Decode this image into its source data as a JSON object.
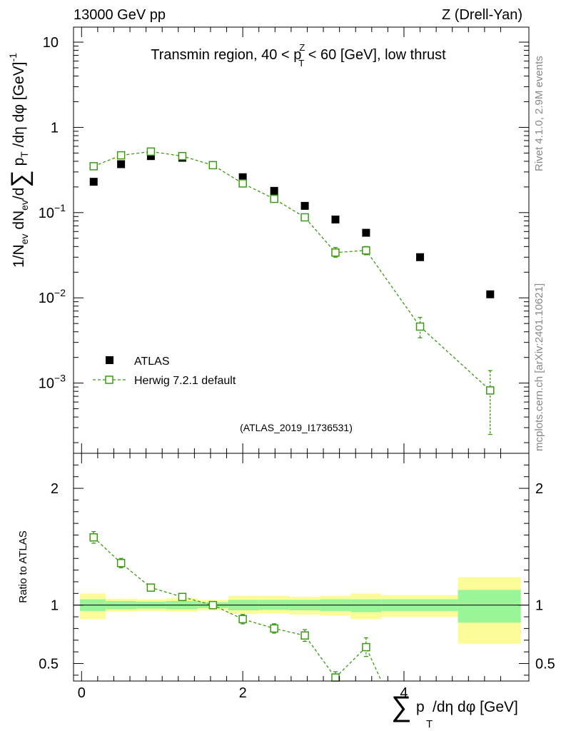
{
  "header": {
    "left": "13000 GeV pp",
    "right": "Z (Drell-Yan)"
  },
  "side_labels": {
    "rivet": "Rivet 4.1.0,  2.9M events",
    "mcplots": "mcplots.cern.ch [arXiv:2401.10621]"
  },
  "watermark": "(ATLAS_2019_I1736531)",
  "colors": {
    "data": "#000000",
    "mc": "#3a9a12",
    "band_inner": "#98f598",
    "band_outer": "#fbfb98"
  },
  "chart_data": [
    {
      "type": "scatter",
      "panel": "main",
      "title_parts": {
        "prefix": "Transmin region, 40 < p",
        "sup": "Z",
        "sub": "T",
        "suffix": " < 60 [GeV], low thrust"
      },
      "ylabel_parts": [
        "1/N",
        "ev",
        " dN",
        "ev",
        "/d",
        "∑",
        " p",
        "T",
        " /dη dφ  [GeV]",
        "-1"
      ],
      "yscale": "log",
      "ylim": [
        0.00015,
        15
      ],
      "xlim": [
        -0.1,
        5.55
      ],
      "y_ticks": [
        {
          "v": 0.001,
          "base": "10",
          "exp": "−3"
        },
        {
          "v": 0.01,
          "base": "10",
          "exp": "−2"
        },
        {
          "v": 0.1,
          "base": "10",
          "exp": "−1"
        },
        {
          "v": 1,
          "base": "1",
          "exp": ""
        },
        {
          "v": 10,
          "base": "10",
          "exp": ""
        }
      ],
      "legend": {
        "position": "lower-left",
        "entries": [
          {
            "label": "ATLAS",
            "style": "filled-square"
          },
          {
            "label": "Herwig 7.2.1 default",
            "style": "open-square-dashed"
          }
        ]
      },
      "series": [
        {
          "name": "ATLAS",
          "x": [
            0.15,
            0.49,
            0.86,
            1.25,
            1.63,
            2.0,
            2.39,
            2.77,
            3.15,
            3.53,
            4.2,
            5.07
          ],
          "values": [
            0.23,
            0.37,
            0.46,
            0.44,
            0.36,
            0.26,
            0.18,
            0.12,
            0.083,
            0.058,
            0.03,
            0.011
          ]
        },
        {
          "name": "Herwig 7.2.1 default",
          "x": [
            0.15,
            0.49,
            0.86,
            1.25,
            1.63,
            2.0,
            2.39,
            2.77,
            3.15,
            3.53,
            4.2,
            5.07
          ],
          "values": [
            0.35,
            0.47,
            0.52,
            0.46,
            0.36,
            0.22,
            0.145,
            0.088,
            0.034,
            0.036,
            0.0046,
            0.00082
          ],
          "err_low": [
            0.35,
            0.47,
            0.52,
            0.46,
            0.36,
            0.22,
            0.145,
            0.088,
            0.03,
            0.032,
            0.0034,
            0.00025
          ],
          "err_high": [
            0.35,
            0.47,
            0.52,
            0.46,
            0.36,
            0.22,
            0.145,
            0.088,
            0.039,
            0.04,
            0.0059,
            0.0014
          ]
        }
      ]
    },
    {
      "type": "scatter",
      "panel": "ratio",
      "ylabel": "Ratio to ATLAS",
      "xlabel_parts": [
        "∑",
        "p",
        "T",
        "/dη dφ [GeV]"
      ],
      "ylim": [
        0.35,
        2.3
      ],
      "xlim": [
        -0.1,
        5.55
      ],
      "x_ticks": [
        {
          "v": 0,
          "label": "0"
        },
        {
          "v": 2,
          "label": "2"
        },
        {
          "v": 4,
          "label": "4"
        }
      ],
      "y_ticks": [
        {
          "v": 0.5,
          "label": "0.5"
        },
        {
          "v": 1,
          "label": "1"
        },
        {
          "v": 2,
          "label": "2"
        }
      ],
      "bands": [
        {
          "x0": -0.02,
          "x1": 0.3,
          "inner": [
            0.95,
            1.05
          ],
          "outer": [
            0.88,
            1.1
          ]
        },
        {
          "x0": 0.3,
          "x1": 0.68,
          "inner": [
            0.965,
            1.035
          ],
          "outer": [
            0.945,
            1.055
          ]
        },
        {
          "x0": 0.68,
          "x1": 1.05,
          "inner": [
            0.97,
            1.03
          ],
          "outer": [
            0.95,
            1.05
          ]
        },
        {
          "x0": 1.05,
          "x1": 1.44,
          "inner": [
            0.965,
            1.035
          ],
          "outer": [
            0.945,
            1.06
          ]
        },
        {
          "x0": 1.44,
          "x1": 1.82,
          "inner": [
            0.975,
            1.025
          ],
          "outer": [
            0.955,
            1.045
          ]
        },
        {
          "x0": 1.82,
          "x1": 2.2,
          "inner": [
            0.955,
            1.045
          ],
          "outer": [
            0.925,
            1.08
          ]
        },
        {
          "x0": 2.2,
          "x1": 2.58,
          "inner": [
            0.96,
            1.045
          ],
          "outer": [
            0.93,
            1.08
          ]
        },
        {
          "x0": 2.58,
          "x1": 2.96,
          "inner": [
            0.955,
            1.045
          ],
          "outer": [
            0.92,
            1.07
          ]
        },
        {
          "x0": 2.96,
          "x1": 3.34,
          "inner": [
            0.95,
            1.05
          ],
          "outer": [
            0.91,
            1.08
          ]
        },
        {
          "x0": 3.34,
          "x1": 3.72,
          "inner": [
            0.94,
            1.05
          ],
          "outer": [
            0.88,
            1.1
          ]
        },
        {
          "x0": 3.72,
          "x1": 4.67,
          "inner": [
            0.95,
            1.05
          ],
          "outer": [
            0.9,
            1.085
          ]
        },
        {
          "x0": 4.67,
          "x1": 5.45,
          "inner": [
            0.85,
            1.13
          ],
          "outer": [
            0.67,
            1.24
          ]
        }
      ],
      "series": [
        {
          "name": "Herwig 7.2.1 default",
          "x": [
            0.15,
            0.49,
            0.86,
            1.25,
            1.63,
            2.0,
            2.39,
            2.77,
            3.15,
            3.53,
            3.72
          ],
          "values": [
            1.58,
            1.36,
            1.15,
            1.07,
            1.0,
            0.88,
            0.8,
            0.74,
            0.38,
            0.64,
            0.33
          ],
          "err_low": [
            1.53,
            1.32,
            1.12,
            1.04,
            0.97,
            0.84,
            0.76,
            0.69,
            0.33,
            0.56,
            0.33
          ],
          "err_high": [
            1.63,
            1.4,
            1.18,
            1.1,
            1.03,
            0.92,
            0.84,
            0.79,
            0.43,
            0.72,
            0.33
          ]
        }
      ]
    }
  ]
}
